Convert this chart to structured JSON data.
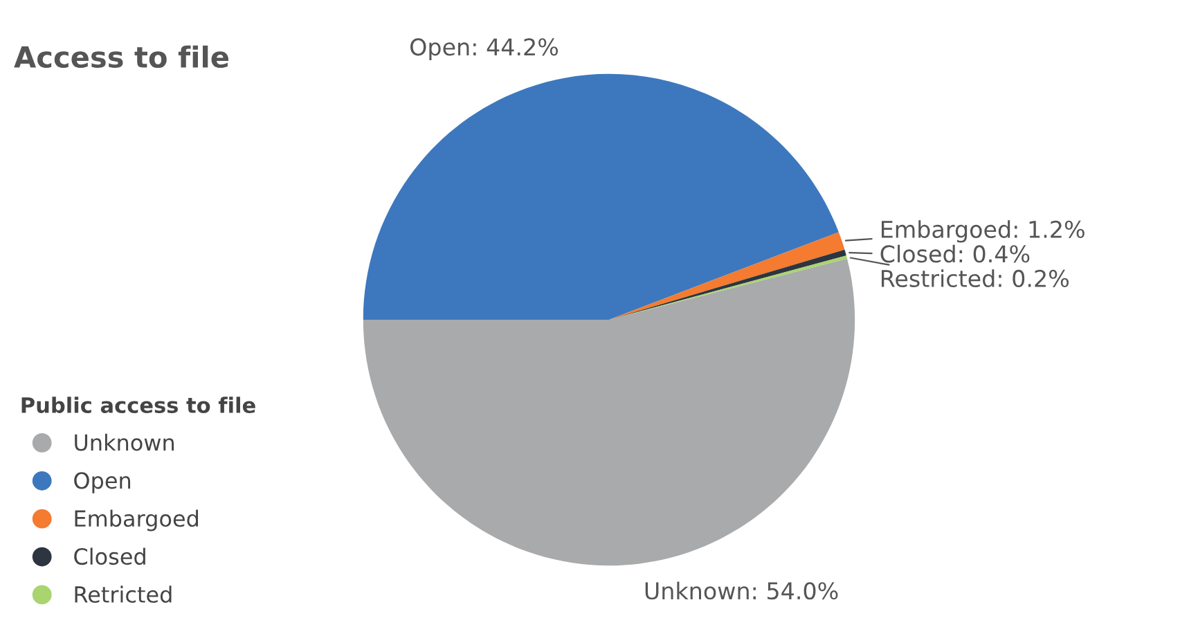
{
  "chart_data": {
    "type": "pie",
    "title": "Access to file",
    "legend_title": "Public access to file",
    "categories": [
      "Unknown",
      "Open",
      "Embargoed",
      "Closed",
      "Retricted"
    ],
    "values": [
      54.0,
      44.2,
      1.2,
      0.4,
      0.2
    ],
    "colors": [
      "#a9aaac",
      "#3d78be",
      "#f47b2f",
      "#2d3540",
      "#a9d46f"
    ],
    "value_labels": [
      "Unknown: 54.0%",
      "Open: 44.2%",
      "Embargoed: 1.2%",
      "Closed: 0.4%",
      "Restricted: 0.2%"
    ],
    "legend": "bottom left"
  }
}
